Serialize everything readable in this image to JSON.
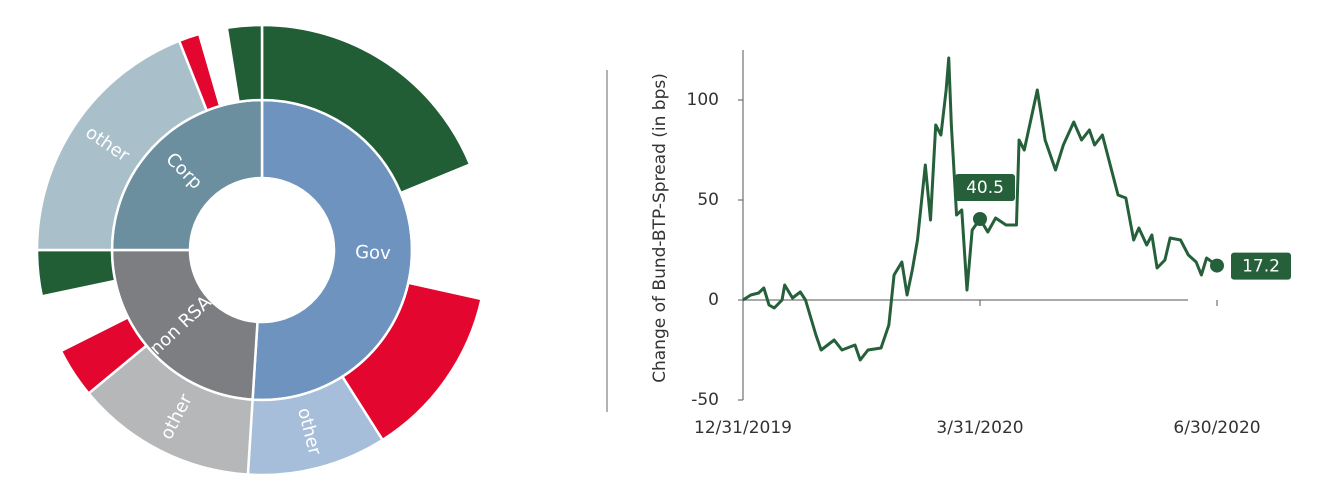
{
  "chart_data": [
    {
      "type": "sunburst",
      "inner": {
        "labels": [
          "Gov",
          "non RSA",
          "Corp"
        ],
        "values": [
          51,
          24,
          25
        ],
        "colors": [
          "#6f93bf",
          "#7c7e81",
          "#6b8f9f"
        ]
      },
      "outer": {
        "labels": [
          null,
          null,
          null,
          "other",
          "other",
          null,
          null,
          null,
          "other",
          null,
          null,
          null
        ],
        "values": [
          18.8,
          9.7,
          12.5,
          10,
          13,
          3.6,
          4.1,
          3.3,
          19,
          1.5,
          2,
          2.5
        ],
        "colors": [
          "#215e36",
          "#ffffff",
          "#e3062e",
          "#a6bed9",
          "#b6b7b9",
          "#e3062e",
          "#ffffff",
          "#215e36",
          "#a9bfca",
          "#e3062e",
          "#ffffff",
          "#215e36"
        ]
      }
    },
    {
      "type": "line",
      "y_label": "Change of Bund-BTP-Spread (in bps)",
      "color": "#25603a",
      "x": [
        "12/31/2019",
        "1/3/2020",
        "1/6/2020",
        "1/8/2020",
        "1/10/2020",
        "1/12/2020",
        "1/15/2020",
        "1/16/2020",
        "1/19/2020",
        "1/22/2020",
        "1/24/2020",
        "1/28/2020",
        "1/30/2020",
        "2/4/2020",
        "2/7/2020",
        "2/12/2020",
        "2/14/2020",
        "2/17/2020",
        "2/22/2020",
        "2/25/2020",
        "2/27/2020",
        "3/1/2020",
        "3/3/2020",
        "3/5/2020",
        "3/7/2020",
        "3/10/2020",
        "3/12/2020",
        "3/14/2020",
        "3/16/2020",
        "3/18/2020",
        "3/19/2020",
        "3/20/2020",
        "3/22/2020",
        "3/24/2020",
        "3/26/2020",
        "3/28/2020",
        "3/31/2020",
        "4/3/2020",
        "4/6/2020",
        "4/10/2020",
        "4/14/2020",
        "4/15/2020",
        "4/17/2020",
        "4/22/2020",
        "4/25/2020",
        "4/29/2020",
        "5/2/2020",
        "5/6/2020",
        "5/9/2020",
        "5/12/2020",
        "5/14/2020",
        "5/17/2020",
        "5/20/2020",
        "5/23/2020",
        "5/26/2020",
        "5/29/2020",
        "5/31/2020",
        "6/3/2020",
        "6/5/2020",
        "6/7/2020",
        "6/10/2020",
        "6/12/2020",
        "6/16/2020",
        "6/19/2020",
        "6/22/2020",
        "6/24/2020",
        "6/26/2020",
        "6/30/2020"
      ],
      "values": [
        0,
        2.5,
        3.5,
        6,
        -2.5,
        -4,
        0,
        7.5,
        1,
        4,
        0,
        -17.5,
        -25,
        -20,
        -25,
        -22.5,
        -30,
        -25,
        -24,
        -12.5,
        12.5,
        19,
        2.5,
        15,
        30,
        67.5,
        40,
        87.5,
        82.5,
        105,
        121,
        87.5,
        42.5,
        45,
        5,
        35,
        40.5,
        34,
        41,
        37.5,
        37.5,
        80,
        75,
        105,
        80,
        65,
        77.5,
        89,
        80,
        85,
        77.5,
        82.5,
        67.5,
        52.5,
        51,
        30,
        36,
        27.5,
        32.5,
        16,
        20,
        31,
        30,
        22.5,
        19,
        12.5,
        21,
        17.2
      ],
      "xlim": [
        "12/31/2019",
        "6/30/2020"
      ],
      "xticks": [
        "12/31/2019",
        "3/31/2020",
        "6/30/2020"
      ],
      "ylim": [
        -50,
        125
      ],
      "yticks": [
        -50,
        0,
        50,
        100
      ],
      "annotations": [
        {
          "x": "3/31/2020",
          "value": 40.5
        },
        {
          "x": "6/30/2020",
          "value": 17.2
        }
      ]
    }
  ]
}
